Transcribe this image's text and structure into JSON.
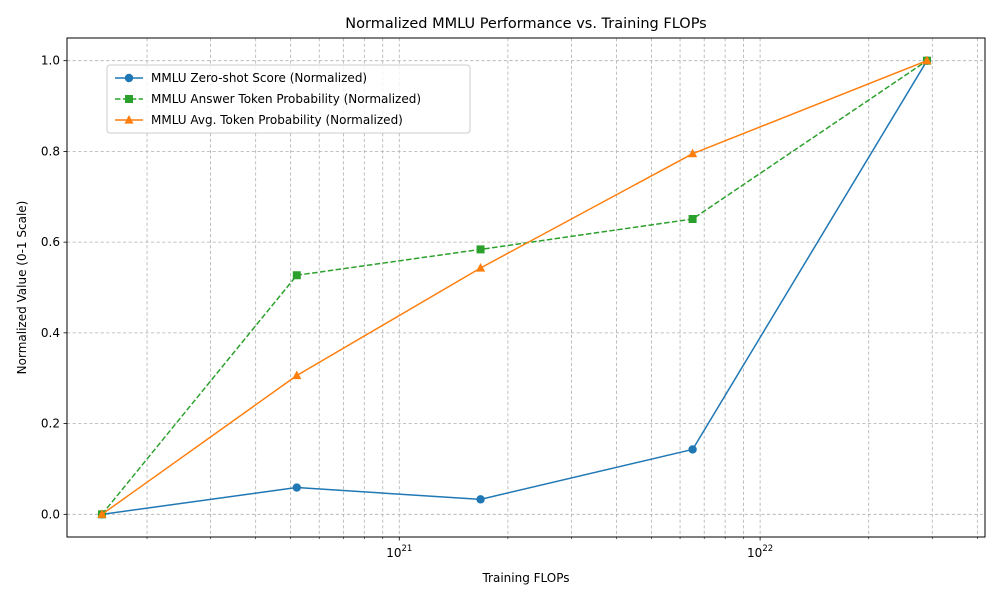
{
  "chart_data": {
    "type": "line",
    "title": "Normalized MMLU Performance vs. Training FLOPs",
    "xlabel": "Training FLOPs",
    "ylabel": "Normalized Value (0-1 Scale)",
    "xscale": "log",
    "xlim": [
      1.2e+20,
      4.2e+22
    ],
    "ylim": [
      -0.05,
      1.05
    ],
    "grid": true,
    "grid_style": "dashed",
    "legend_position": "upper-left",
    "x": [
      1.5e+20,
      5.2e+20,
      1.68e+21,
      6.5e+21,
      2.9e+22
    ],
    "x_tick_labels": [
      {
        "value": 1e+21,
        "base": "10",
        "exp": "21"
      },
      {
        "value": 1e+22,
        "base": "10",
        "exp": "22"
      }
    ],
    "y_tick_labels": [
      "0.0",
      "0.2",
      "0.4",
      "0.6",
      "0.8",
      "1.0"
    ],
    "y_ticks": [
      0.0,
      0.2,
      0.4,
      0.6,
      0.8,
      1.0
    ],
    "series": [
      {
        "name": "MMLU Zero-shot Score (Normalized)",
        "values": [
          0.0,
          0.059,
          0.033,
          0.143,
          1.0
        ],
        "color": "#1f77b4",
        "marker": "circle",
        "linestyle": "solid"
      },
      {
        "name": "MMLU Answer Token Probability (Normalized)",
        "values": [
          0.0,
          0.527,
          0.584,
          0.651,
          1.0
        ],
        "color": "#2ca02c",
        "marker": "square",
        "linestyle": "dashed"
      },
      {
        "name": "MMLU Avg. Token Probability (Normalized)",
        "values": [
          0.0,
          0.306,
          0.543,
          0.795,
          1.0
        ],
        "color": "#ff7f0e",
        "marker": "triangle",
        "linestyle": "solid"
      }
    ]
  }
}
